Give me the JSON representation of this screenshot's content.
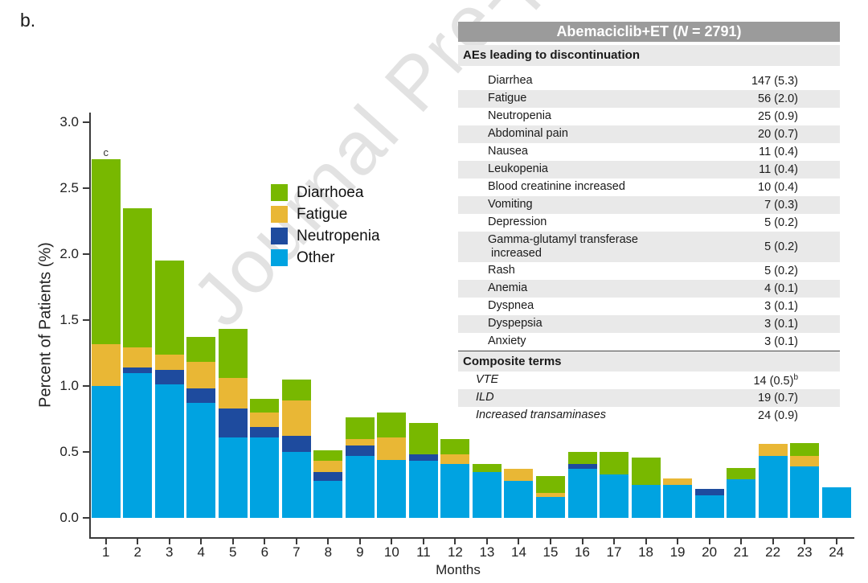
{
  "figure_label": "b.",
  "watermark_text": "Journal Pre-proof",
  "colors": {
    "diarrhoea": "#78b800",
    "fatigue": "#e9b735",
    "neutropenia": "#1e4b9e",
    "other": "#00a3e1",
    "table_header_bg": "#9b9b9b",
    "row_stripe_bg": "#e9e9e9",
    "axis": "#3a3a3a"
  },
  "chart_data": {
    "type": "bar",
    "stacked": true,
    "xlabel": "Months",
    "ylabel": "Percent of Patients (%)",
    "ylim": [
      0,
      3.0
    ],
    "yticks": [
      0.0,
      0.5,
      1.0,
      1.5,
      2.0,
      2.5,
      3.0
    ],
    "grid": false,
    "legend_position": "upper-left-of-plot",
    "categories": [
      1,
      2,
      3,
      4,
      5,
      6,
      7,
      8,
      9,
      10,
      11,
      12,
      13,
      14,
      15,
      16,
      17,
      18,
      19,
      20,
      21,
      22,
      23,
      24
    ],
    "series": [
      {
        "name": "Other",
        "color_key": "other",
        "values": [
          1.0,
          1.1,
          1.01,
          0.87,
          0.61,
          0.61,
          0.5,
          0.28,
          0.47,
          0.44,
          0.43,
          0.41,
          0.35,
          0.28,
          0.16,
          0.37,
          0.33,
          0.25,
          0.25,
          0.17,
          0.29,
          0.47,
          0.39,
          0.23
        ]
      },
      {
        "name": "Neutropenia",
        "color_key": "neutropenia",
        "values": [
          0,
          0.04,
          0.11,
          0.11,
          0.22,
          0.08,
          0.12,
          0.07,
          0.08,
          0,
          0.05,
          0,
          0,
          0,
          0,
          0.04,
          0,
          0,
          0,
          0.05,
          0,
          0,
          0,
          0
        ]
      },
      {
        "name": "Fatigue",
        "color_key": "fatigue",
        "values": [
          0.32,
          0.15,
          0.12,
          0.2,
          0.23,
          0.11,
          0.27,
          0.08,
          0.05,
          0.17,
          0,
          0.07,
          0,
          0.09,
          0.03,
          0,
          0,
          0,
          0.05,
          0,
          0,
          0.09,
          0.08,
          0
        ]
      },
      {
        "name": "Diarrhoea",
        "color_key": "diarrhoea",
        "values": [
          1.4,
          1.06,
          0.71,
          0.19,
          0.37,
          0.1,
          0.16,
          0.08,
          0.16,
          0.19,
          0.24,
          0.12,
          0.06,
          0,
          0.13,
          0.09,
          0.17,
          0.21,
          0,
          0,
          0.09,
          0,
          0.1,
          0
        ]
      }
    ],
    "totals": [
      2.72,
      2.35,
      1.95,
      1.37,
      1.43,
      0.9,
      1.05,
      0.51,
      0.76,
      0.8,
      0.72,
      0.6,
      0.41,
      0.37,
      0.32,
      0.5,
      0.5,
      0.46,
      0.3,
      0.22,
      0.38,
      0.56,
      0.57,
      0.23
    ],
    "legend": [
      {
        "label": "Diarrhoea",
        "color_key": "diarrhoea"
      },
      {
        "label": "Fatigue",
        "color_key": "fatigue"
      },
      {
        "label": "Neutropenia",
        "color_key": "neutropenia"
      },
      {
        "label": "Other",
        "color_key": "other"
      }
    ],
    "annotations": [
      {
        "x": 1,
        "text": "c"
      }
    ]
  },
  "table": {
    "header": {
      "prefix": "Abemaciclib+ET (",
      "n": "N",
      "suffix": " = 2791)"
    },
    "sections": [
      {
        "title": "AEs leading to discontinuation",
        "rows": [
          {
            "label": "Diarrhea",
            "value": "147 (5.3)"
          },
          {
            "label": "Fatigue",
            "value": "56 (2.0)"
          },
          {
            "label": "Neutropenia",
            "value": "25 (0.9)"
          },
          {
            "label": "Abdominal pain",
            "value": "20 (0.7)"
          },
          {
            "label": "Nausea",
            "value": "11 (0.4)"
          },
          {
            "label": "Leukopenia",
            "value": "11 (0.4)"
          },
          {
            "label": "Blood creatinine increased",
            "value": "10 (0.4)"
          },
          {
            "label": "Vomiting",
            "value": "7 (0.3)"
          },
          {
            "label": "Depression",
            "value": "5 (0.2)"
          },
          {
            "label": "Gamma-glutamyl transferase\n increased",
            "value": "5 (0.2)",
            "twoline": true
          },
          {
            "label": "Rash",
            "value": "5 (0.2)"
          },
          {
            "label": "Anemia",
            "value": "4 (0.1)"
          },
          {
            "label": "Dyspnea",
            "value": "3 (0.1)"
          },
          {
            "label": "Dyspepsia",
            "value": "3 (0.1)"
          },
          {
            "label": "Anxiety",
            "value": "3 (0.1)"
          }
        ]
      },
      {
        "title": "Composite terms",
        "divider": true,
        "rows": [
          {
            "label": "VTE",
            "value": "14 (0.5)",
            "sup": "b",
            "italic": true
          },
          {
            "label": "ILD",
            "value": "19 (0.7)",
            "italic": true
          },
          {
            "label": "Increased transaminases",
            "value": "24 (0.9)",
            "italic": true
          }
        ]
      }
    ]
  }
}
